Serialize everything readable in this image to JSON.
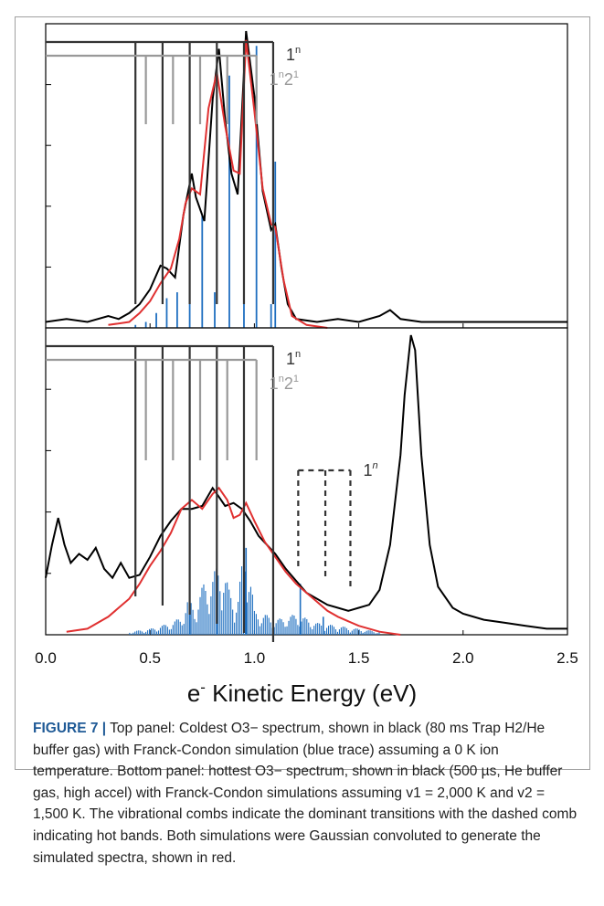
{
  "chart_data": [
    {
      "panel": "top",
      "type": "line",
      "xlabel": "e- Kinetic Energy (eV)",
      "xlim": [
        0,
        2.5
      ],
      "xticks": [
        "0.0",
        "0.5",
        "1.0",
        "1.5",
        "2.0",
        "2.5"
      ],
      "series": [
        {
          "color": "#000000",
          "x": [
            0.0,
            0.1,
            0.2,
            0.3,
            0.35,
            0.4,
            0.45,
            0.5,
            0.55,
            0.58,
            0.62,
            0.66,
            0.7,
            0.72,
            0.76,
            0.8,
            0.83,
            0.86,
            0.89,
            0.92,
            0.96,
            1.0,
            1.04,
            1.08,
            1.1,
            1.13,
            1.16,
            1.2,
            1.3,
            1.4,
            1.5,
            1.6,
            1.65,
            1.7,
            1.8,
            2.0,
            2.2,
            2.5
          ],
          "y": [
            0.02,
            0.03,
            0.02,
            0.04,
            0.03,
            0.05,
            0.08,
            0.13,
            0.21,
            0.2,
            0.17,
            0.38,
            0.52,
            0.44,
            0.36,
            0.77,
            0.94,
            0.7,
            0.52,
            0.45,
            1.0,
            0.78,
            0.46,
            0.33,
            0.35,
            0.2,
            0.08,
            0.03,
            0.02,
            0.03,
            0.02,
            0.04,
            0.06,
            0.03,
            0.02,
            0.02,
            0.02,
            0.02
          ]
        },
        {
          "color": "#e03030",
          "x": [
            0.3,
            0.4,
            0.45,
            0.5,
            0.55,
            0.6,
            0.64,
            0.67,
            0.7,
            0.74,
            0.78,
            0.82,
            0.86,
            0.9,
            0.93,
            0.96,
            1.0,
            1.04,
            1.08,
            1.1,
            1.14,
            1.18,
            1.25,
            1.35
          ],
          "y": [
            0.01,
            0.02,
            0.05,
            0.09,
            0.15,
            0.2,
            0.3,
            0.42,
            0.47,
            0.45,
            0.74,
            0.86,
            0.68,
            0.53,
            0.52,
            0.97,
            0.73,
            0.47,
            0.35,
            0.34,
            0.16,
            0.04,
            0.01,
            0.0
          ]
        }
      ],
      "sticks": {
        "color": "#1f6fc0",
        "x": [
          0.43,
          0.48,
          0.53,
          0.58,
          0.63,
          0.69,
          0.75,
          0.81,
          0.88,
          0.95,
          1.01,
          1.08,
          1.1
        ],
        "y": [
          0.01,
          0.02,
          0.05,
          0.1,
          0.12,
          0.34,
          0.38,
          0.12,
          0.85,
          0.1,
          0.95,
          0.08,
          0.56
        ]
      },
      "combs": [
        {
          "label": "1",
          "sup": "n",
          "color": "#333333",
          "dashed": false,
          "x": [
            0.43,
            0.56,
            0.69,
            0.82,
            0.95,
            1.09
          ]
        },
        {
          "label": "1",
          "sup": "n",
          "label2": "2",
          "sup2": "1",
          "color": "#999999",
          "dashed": false,
          "x": [
            0.48,
            0.61,
            0.74,
            0.87,
            1.01
          ]
        }
      ]
    },
    {
      "panel": "bottom",
      "type": "line",
      "xlabel": "e- Kinetic Energy (eV)",
      "xlim": [
        0,
        2.5
      ],
      "xticks": [
        "0.0",
        "0.5",
        "1.0",
        "1.5",
        "2.0",
        "2.5"
      ],
      "series": [
        {
          "color": "#000000",
          "x": [
            0.0,
            0.03,
            0.06,
            0.09,
            0.12,
            0.16,
            0.2,
            0.24,
            0.28,
            0.32,
            0.36,
            0.4,
            0.45,
            0.5,
            0.55,
            0.6,
            0.65,
            0.7,
            0.75,
            0.8,
            0.83,
            0.86,
            0.9,
            0.94,
            0.98,
            1.02,
            1.06,
            1.1,
            1.15,
            1.2,
            1.25,
            1.3,
            1.35,
            1.4,
            1.45,
            1.5,
            1.55,
            1.6,
            1.65,
            1.7,
            1.72,
            1.75,
            1.77,
            1.8,
            1.84,
            1.88,
            1.95,
            2.0,
            2.1,
            2.2,
            2.3,
            2.4,
            2.5
          ],
          "y": [
            0.19,
            0.3,
            0.39,
            0.3,
            0.24,
            0.27,
            0.25,
            0.29,
            0.22,
            0.19,
            0.24,
            0.19,
            0.2,
            0.26,
            0.33,
            0.38,
            0.42,
            0.42,
            0.43,
            0.49,
            0.46,
            0.43,
            0.44,
            0.42,
            0.38,
            0.33,
            0.3,
            0.27,
            0.22,
            0.18,
            0.14,
            0.12,
            0.1,
            0.09,
            0.08,
            0.09,
            0.1,
            0.15,
            0.3,
            0.6,
            0.8,
            1.0,
            0.95,
            0.6,
            0.3,
            0.16,
            0.09,
            0.07,
            0.05,
            0.04,
            0.03,
            0.02,
            0.02
          ]
        },
        {
          "color": "#e03030",
          "x": [
            0.1,
            0.2,
            0.3,
            0.4,
            0.45,
            0.5,
            0.55,
            0.6,
            0.65,
            0.7,
            0.75,
            0.8,
            0.83,
            0.87,
            0.9,
            0.93,
            0.96,
            1.0,
            1.05,
            1.1,
            1.15,
            1.2,
            1.25,
            1.3,
            1.35,
            1.4,
            1.5,
            1.6,
            1.7
          ],
          "y": [
            0.01,
            0.02,
            0.06,
            0.12,
            0.17,
            0.23,
            0.28,
            0.34,
            0.42,
            0.45,
            0.42,
            0.47,
            0.49,
            0.45,
            0.39,
            0.4,
            0.44,
            0.38,
            0.31,
            0.26,
            0.21,
            0.17,
            0.14,
            0.11,
            0.08,
            0.06,
            0.03,
            0.01,
            0.0
          ]
        },
        {
          "color": "#1f6fc0",
          "x": [
            0.4,
            0.5,
            0.6,
            0.65,
            0.68,
            0.72,
            0.76,
            0.8,
            0.84,
            0.88,
            0.92,
            0.96,
            1.0,
            1.05,
            1.1,
            1.2,
            1.3,
            1.4,
            1.5,
            1.6
          ],
          "y": [
            0.01,
            0.02,
            0.04,
            0.06,
            0.12,
            0.1,
            0.18,
            0.2,
            0.26,
            0.15,
            0.12,
            0.35,
            0.08,
            0.07,
            0.05,
            0.07,
            0.04,
            0.03,
            0.02,
            0.01
          ]
        }
      ],
      "combs": [
        {
          "label": "1",
          "sup": "n",
          "color": "#333333",
          "dashed": false,
          "x": [
            0.43,
            0.56,
            0.69,
            0.82,
            0.95,
            1.09
          ]
        },
        {
          "label": "1",
          "sup": "n",
          "label2": "2",
          "sup2": "1",
          "color": "#999999",
          "dashed": false,
          "x": [
            0.48,
            0.61,
            0.74,
            0.87,
            1.01
          ]
        },
        {
          "label": "1",
          "sup": "n",
          "color": "#333333",
          "dashed": true,
          "x": [
            1.21,
            1.34,
            1.46
          ]
        }
      ]
    }
  ],
  "axis_label": {
    "prefix": "e",
    "sup": "-",
    "text": " Kinetic Energy (eV)"
  },
  "caption": {
    "figure": "FIGURE 7 |",
    "text": " Top panel: Coldest O3− spectrum, shown in black (80 ms Trap H2/He buffer gas) with Franck-Condon simulation (blue trace) assuming a 0 K ion temperature. Bottom panel: hottest O3− spectrum, shown in black (500 µs, He buffer gas, high accel) with Franck-Condon simulations assuming v1 = 2,000 K and v2 = 1,500 K. The vibrational combs indicate the dominant transitions with the dashed comb indicating hot bands. Both simulations were Gaussian convoluted to generate the simulated spectra, shown in red."
  }
}
